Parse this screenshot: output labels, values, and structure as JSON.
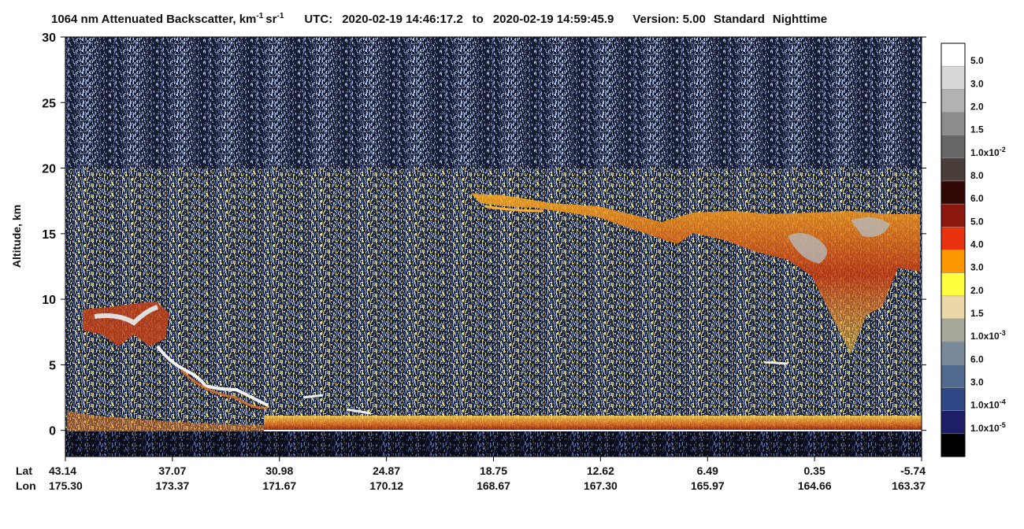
{
  "chart_data": {
    "type": "backscatter-profile",
    "title": {
      "product": "1064 nm Attenuated Backscatter, km",
      "exp1": "-1",
      "unit": "sr",
      "exp2": "-1",
      "utc_label": "UTC:",
      "start": "2020-02-19 14:46:17.2",
      "to": "to",
      "end": "2020-02-19 14:59:45.9",
      "version": "Version: 5.00",
      "mode": "Standard",
      "light": "Nighttime"
    },
    "y_label": "Altitude, km",
    "ylim": [
      -2,
      30
    ],
    "yticks": [
      0,
      5,
      10,
      15,
      20,
      25,
      30
    ],
    "x_rows": {
      "lat_title": "Lat",
      "lon_title": "Lon",
      "lat": [
        43.14,
        37.07,
        30.98,
        24.87,
        18.75,
        12.62,
        6.49,
        0.35,
        -5.74
      ],
      "lon": [
        {
          "value": 175.3,
          "label": "175.30"
        },
        173.37,
        171.67,
        170.12,
        168.67,
        {
          "value": 167.3,
          "label": "167.30"
        },
        165.97,
        164.66,
        163.37
      ]
    },
    "colorbar": {
      "colors": [
        "#ffffff",
        "#d8d8d8",
        "#b2b2b2",
        "#8c8c8c",
        "#666666",
        "#4a3e3a",
        "#300806",
        "#8a180e",
        "#e8320e",
        "#ff9800",
        "#ffff40",
        "#ead8a8",
        "#a8a89a",
        "#7a8a9a",
        "#526a8e",
        "#2e4684",
        "#1e1e66",
        "#000000"
      ],
      "labels": [
        "5.0",
        "3.0",
        "2.0",
        "1.5",
        {
          "text": "1.0x10",
          "sup": "-2"
        },
        "8.0",
        "6.0",
        "5.0",
        "4.0",
        "3.0",
        "2.0",
        "1.5",
        {
          "text": "1.0x10",
          "sup": "-3"
        },
        "6.0",
        "3.0",
        {
          "text": "1.0x10",
          "sup": "-4"
        },
        {
          "text": "1.0x10",
          "sup": "-5"
        }
      ]
    }
  }
}
